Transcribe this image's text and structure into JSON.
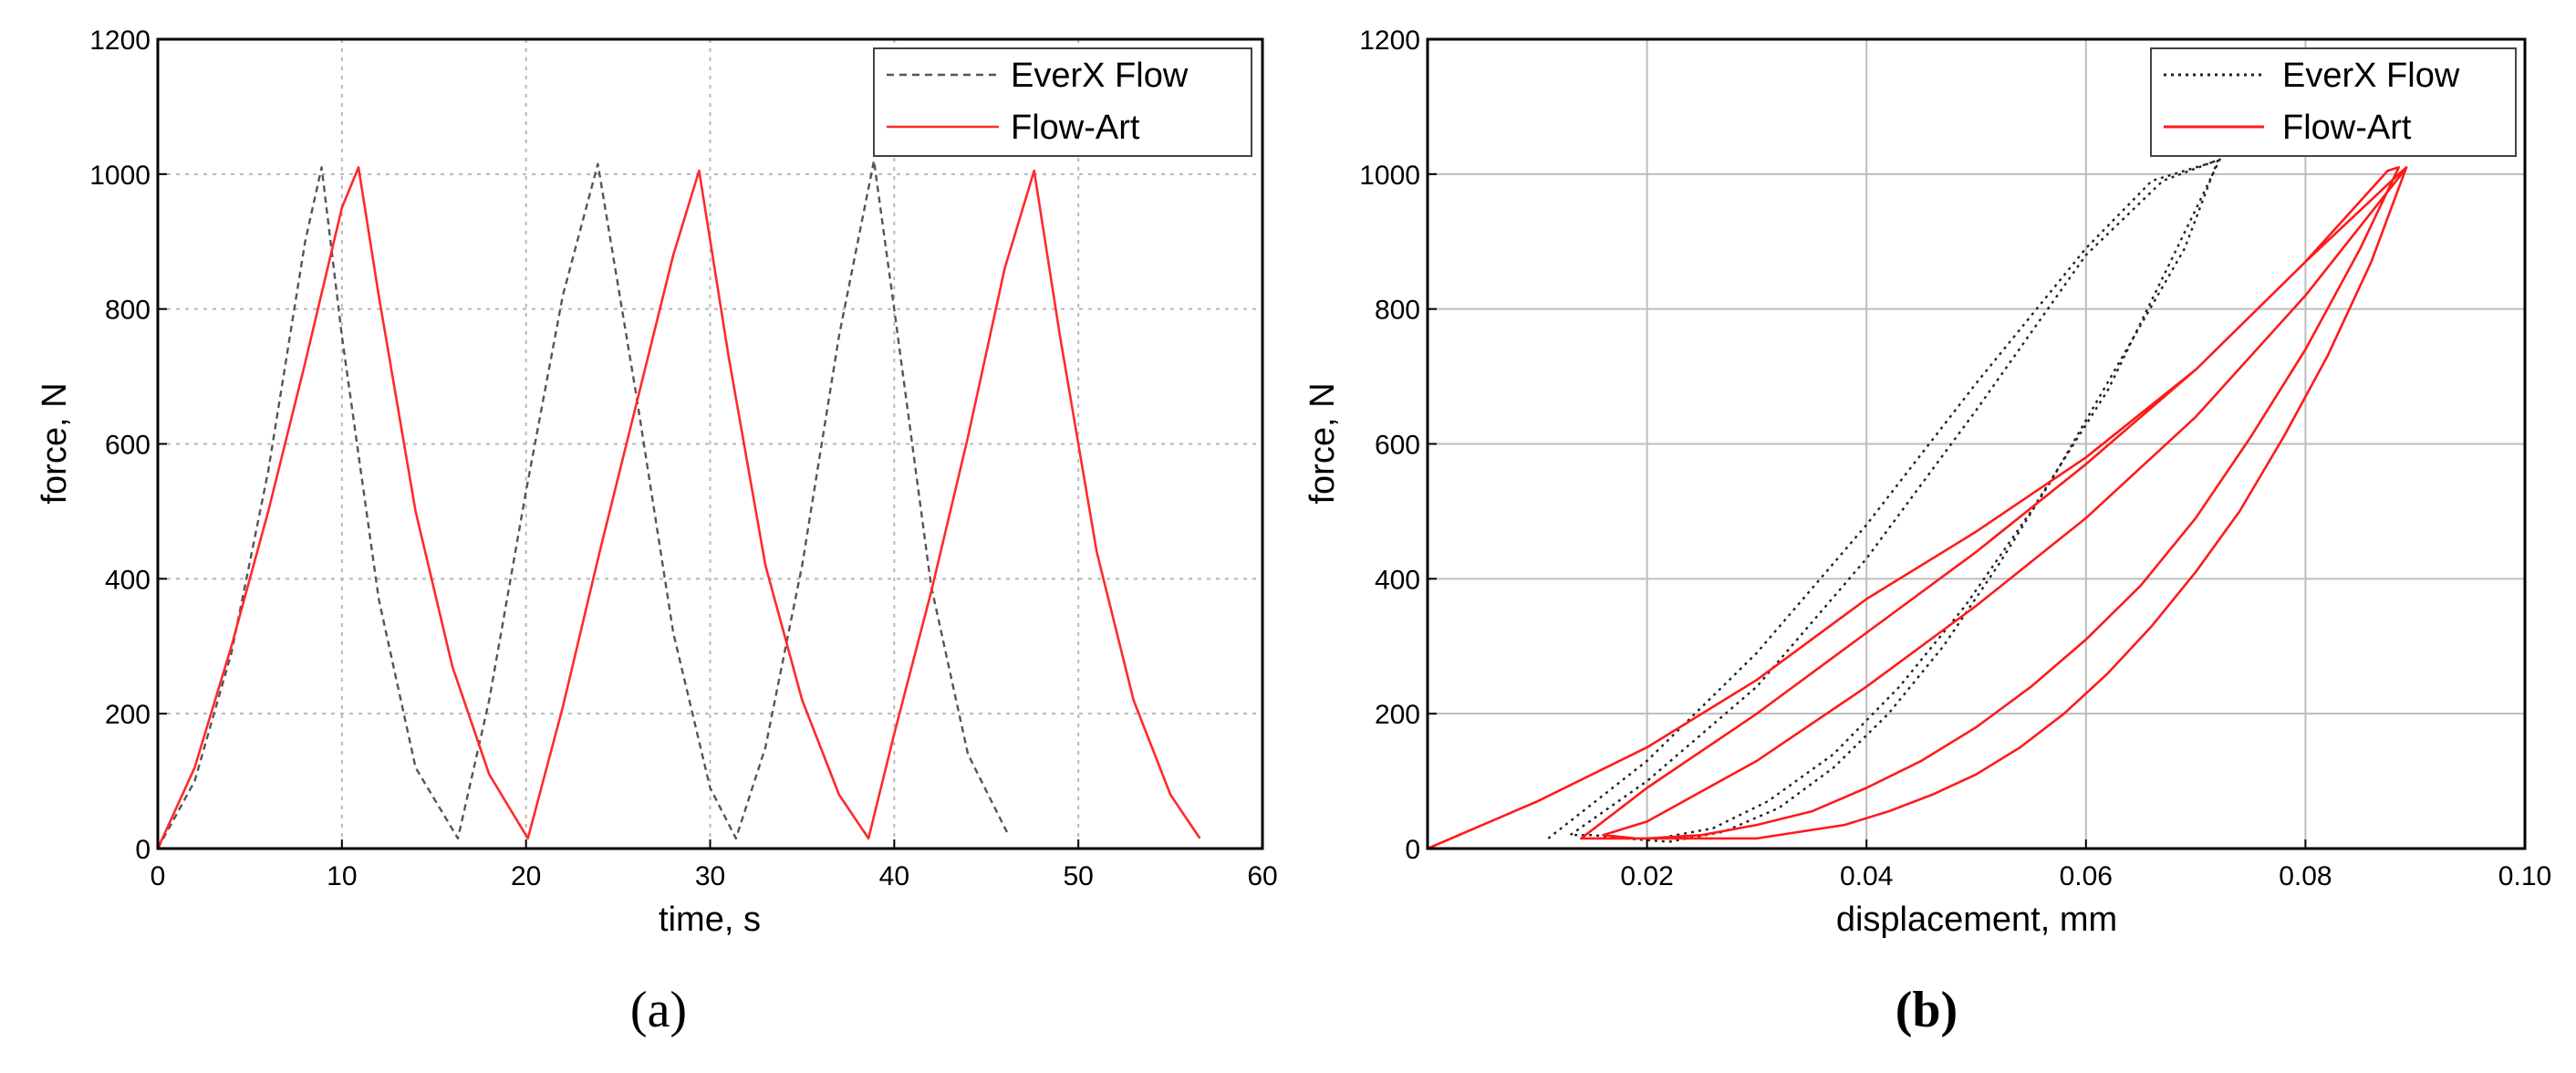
{
  "chart_data": [
    {
      "type": "line",
      "panel_label": "(a)",
      "xlabel": "time, s",
      "ylabel": "force, N",
      "xlim": [
        0,
        60
      ],
      "ylim": [
        0,
        1200
      ],
      "xticks": [
        0,
        10,
        20,
        30,
        40,
        50,
        60
      ],
      "yticks": [
        0,
        200,
        400,
        600,
        800,
        1000,
        1200
      ],
      "grid": "dotted",
      "legend_position": "top-right",
      "series": [
        {
          "name": "EverX Flow",
          "color": "#555555",
          "style": "dashed",
          "x": [
            0,
            2,
            4,
            6,
            8,
            8.9,
            10,
            12,
            14,
            16.3,
            18,
            20,
            22,
            23.9,
            26,
            28,
            30,
            31.4,
            33,
            35,
            37,
            38.9,
            40,
            42,
            44,
            46.2
          ],
          "y": [
            0,
            100,
            290,
            560,
            900,
            1010,
            760,
            370,
            120,
            15,
            220,
            530,
            820,
            1015,
            670,
            320,
            90,
            15,
            150,
            420,
            760,
            1020,
            800,
            390,
            140,
            20
          ]
        },
        {
          "name": "Flow-Art",
          "color": "#ff2a2a",
          "style": "solid",
          "x": [
            0,
            2,
            4,
            6,
            8,
            10,
            10.9,
            12,
            14,
            16,
            18,
            20.1,
            22,
            24,
            26,
            28,
            29.4,
            31,
            33,
            35,
            37,
            38.6,
            40,
            42,
            44,
            46,
            47.6,
            49,
            51,
            53,
            55,
            56.6
          ],
          "y": [
            0,
            120,
            300,
            500,
            720,
            950,
            1010,
            820,
            500,
            270,
            110,
            15,
            210,
            440,
            660,
            880,
            1005,
            730,
            420,
            220,
            80,
            15,
            170,
            380,
            610,
            860,
            1005,
            760,
            440,
            220,
            80,
            15
          ]
        }
      ]
    },
    {
      "type": "line",
      "panel_label": "(b)",
      "xlabel": "displacement, mm",
      "ylabel": "force, N",
      "xlim": [
        0,
        0.1
      ],
      "ylim": [
        0,
        1200
      ],
      "xticks": [
        0.02,
        0.04,
        0.06,
        0.08,
        0.1
      ],
      "xtick_labels": [
        "0.02",
        "0.04",
        "0.06",
        "0.08",
        "0.10"
      ],
      "yticks": [
        0,
        200,
        400,
        600,
        800,
        1000,
        1200
      ],
      "grid": "solid",
      "legend_position": "top-right",
      "series": [
        {
          "name": "EverX Flow",
          "color": "#222222",
          "style": "dotted",
          "x": [
            0.011,
            0.02,
            0.03,
            0.04,
            0.05,
            0.06,
            0.066,
            0.072,
            0.069,
            0.063,
            0.057,
            0.052,
            0.047,
            0.042,
            0.037,
            0.032,
            0.027,
            0.022,
            0.018,
            0.015,
            0.013,
            0.02,
            0.03,
            0.04,
            0.05,
            0.06,
            0.067,
            0.0722,
            0.068,
            0.062,
            0.055,
            0.049,
            0.043,
            0.037,
            0.031,
            0.026,
            0.021,
            0.018,
            0.016
          ],
          "y": [
            15,
            130,
            290,
            480,
            690,
            890,
            990,
            1020,
            890,
            720,
            550,
            420,
            300,
            200,
            120,
            60,
            25,
            10,
            15,
            20,
            20,
            100,
            240,
            430,
            650,
            880,
            990,
            1022,
            880,
            680,
            500,
            360,
            240,
            140,
            70,
            30,
            15,
            15,
            20
          ]
        },
        {
          "name": "Flow-Art",
          "color": "#ff1a1a",
          "style": "solid",
          "x": [
            0.0,
            0.01,
            0.02,
            0.03,
            0.04,
            0.05,
            0.06,
            0.07,
            0.08,
            0.0875,
            0.0885,
            0.085,
            0.08,
            0.075,
            0.07,
            0.065,
            0.06,
            0.055,
            0.05,
            0.045,
            0.04,
            0.035,
            0.03,
            0.025,
            0.02,
            0.017,
            0.014,
            0.02,
            0.03,
            0.04,
            0.05,
            0.06,
            0.07,
            0.08,
            0.0885,
            0.0892,
            0.086,
            0.082,
            0.078,
            0.074,
            0.07,
            0.066,
            0.062,
            0.058,
            0.054,
            0.05,
            0.046,
            0.042,
            0.038,
            0.034,
            0.03,
            0.026,
            0.022,
            0.019,
            0.016,
            0.02,
            0.03,
            0.04,
            0.05,
            0.06,
            0.07,
            0.08,
            0.089
          ],
          "y": [
            0,
            70,
            150,
            250,
            370,
            470,
            580,
            710,
            870,
            1005,
            1010,
            890,
            740,
            610,
            490,
            390,
            310,
            240,
            180,
            130,
            90,
            55,
            35,
            20,
            15,
            15,
            15,
            90,
            200,
            320,
            440,
            570,
            710,
            870,
            1000,
            1010,
            870,
            730,
            610,
            500,
            410,
            330,
            260,
            200,
            150,
            110,
            80,
            55,
            35,
            25,
            15,
            15,
            15,
            15,
            20,
            40,
            130,
            240,
            360,
            490,
            640,
            820,
            1005
          ]
        }
      ]
    }
  ]
}
